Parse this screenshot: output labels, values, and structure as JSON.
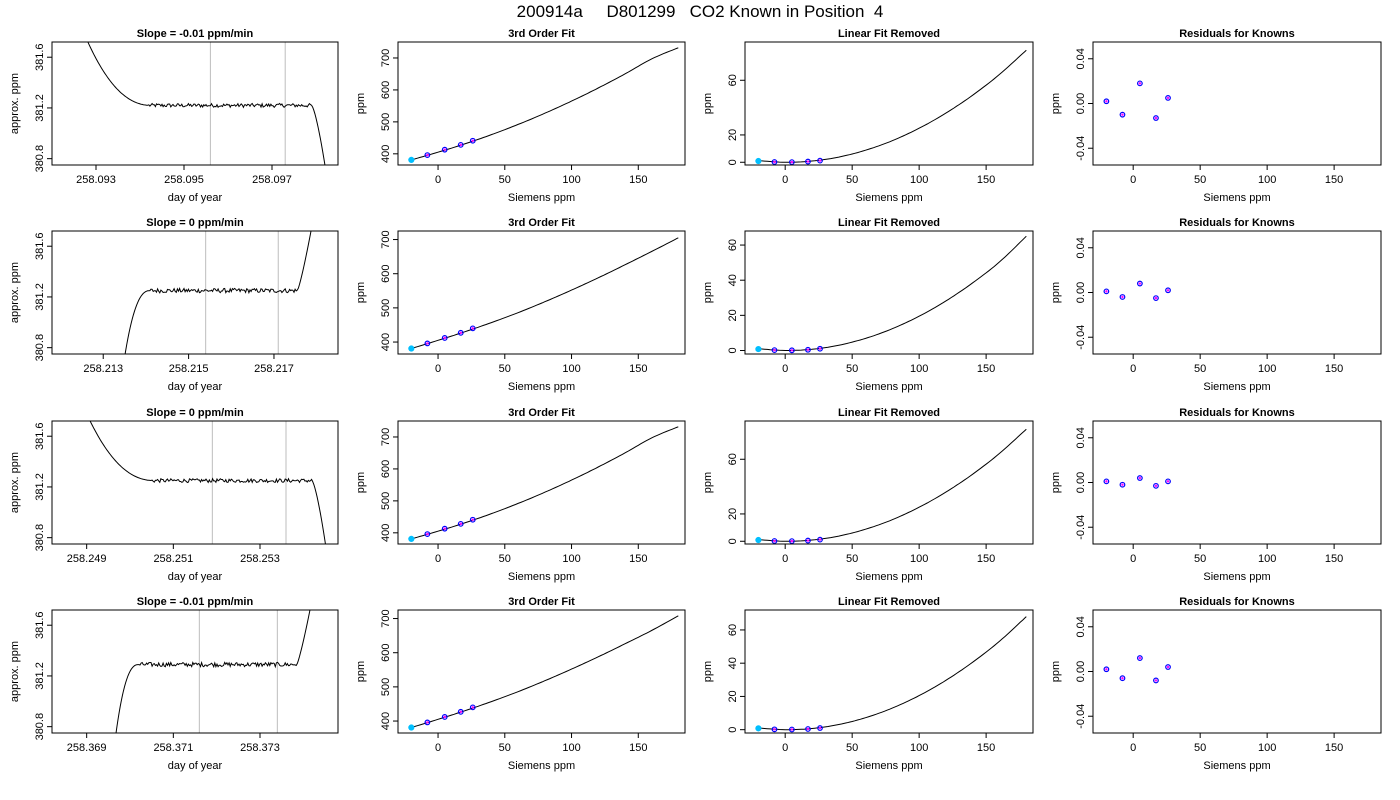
{
  "title": "200914a     D801299   CO2 Known in Position  4",
  "colors": {
    "curve": "#000000",
    "vline": "#bdbdbd",
    "point_outline": "#0000ff",
    "point_fill": "#ff00ff",
    "first_point": "#00bfff"
  },
  "axis_labels": {
    "day_of_year": "day of year",
    "approx_ppm": "approx. ppm",
    "siemens_ppm": "Siemens ppm",
    "ppm": "ppm"
  },
  "panel_titles": {
    "fit": "3rd Order Fit",
    "linear": "Linear Fit Removed",
    "resid": "Residuals for Knowns"
  },
  "y_ticks": {
    "ts": [
      "380.8",
      "381.2",
      "381.6"
    ],
    "resid": [
      "-0.04",
      "0.00",
      "0.04"
    ]
  },
  "x_ticks": {
    "siemens": [
      "0",
      "50",
      "100",
      "150"
    ]
  },
  "chart_data": [
    {
      "type": "line",
      "title": "Slope =  -0.01  ppm/min",
      "xlabel": "day of year",
      "ylabel": "approx. ppm",
      "x_ticks": [
        "258.093",
        "258.095",
        "258.097"
      ],
      "xlim": [
        258.092,
        258.0985
      ],
      "ylim": [
        380.75,
        381.72
      ],
      "marker_lines_x": [
        258.0956,
        258.0973
      ],
      "profile": "high_start",
      "level": 381.22,
      "start_value": 382.5,
      "end_value": 380.2,
      "settle_x": 258.0942,
      "end_x": 258.0981
    },
    {
      "type": "line",
      "title": "3rd Order Fit",
      "xlabel": "Siemens ppm",
      "ylabel": "ppm",
      "x_ticks": [
        "0",
        "50",
        "100",
        "150"
      ],
      "y_ticks": [
        "400",
        "500",
        "600",
        "700"
      ],
      "xlim": [
        -30,
        185
      ],
      "ylim": [
        365,
        750
      ],
      "curve_x": [
        -20,
        0,
        20,
        40,
        60,
        80,
        100,
        120,
        140,
        160,
        180
      ],
      "curve_y": [
        381,
        405,
        431,
        460,
        492,
        527,
        565,
        606,
        650,
        697,
        732
      ],
      "points_x": [
        -20,
        -8,
        5,
        17,
        26
      ],
      "points_y": [
        381,
        396,
        413,
        428,
        441
      ]
    },
    {
      "type": "line",
      "title": "Linear Fit Removed",
      "xlabel": "Siemens ppm",
      "ylabel": "ppm",
      "x_ticks": [
        "0",
        "50",
        "100",
        "150"
      ],
      "y_ticks": [
        "0",
        "20",
        "60"
      ],
      "xlim": [
        -30,
        185
      ],
      "ylim": [
        -2,
        88
      ],
      "curve_x": [
        -20,
        0,
        20,
        40,
        60,
        80,
        100,
        120,
        140,
        160,
        180
      ],
      "curve_y": [
        1.2,
        0.0,
        0.9,
        3.8,
        8.8,
        15.8,
        24.9,
        36.0,
        49.1,
        64.3,
        82
      ],
      "points_x": [
        -20,
        -8,
        5,
        17,
        26
      ],
      "points_y": [
        0.9,
        0.2,
        0.1,
        0.5,
        1.2
      ]
    },
    {
      "type": "scatter",
      "title": "Residuals for Knowns",
      "xlabel": "Siemens ppm",
      "ylabel": "ppm",
      "x_ticks": [
        "0",
        "50",
        "100",
        "150"
      ],
      "y_ticks": [
        "-0.04",
        "0.00",
        "0.04"
      ],
      "xlim": [
        -30,
        185
      ],
      "ylim": [
        -0.055,
        0.055
      ],
      "points_x": [
        -20,
        -8,
        5,
        17,
        26
      ],
      "points_y": [
        0.002,
        -0.01,
        0.018,
        -0.013,
        0.005
      ]
    },
    {
      "type": "line",
      "title": "Slope =  0  ppm/min",
      "xlabel": "day of year",
      "ylabel": "approx. ppm",
      "x_ticks": [
        "258.213",
        "258.215",
        "258.217"
      ],
      "xlim": [
        258.2118,
        258.2185
      ],
      "ylim": [
        380.75,
        381.72
      ],
      "marker_lines_x": [
        258.2154,
        258.2171
      ],
      "profile": "low_start",
      "level": 381.25,
      "start_value": 380.2,
      "end_value": 382.5,
      "settle_x": 258.2141,
      "end_x": 258.2178,
      "begin_x": 258.2133
    },
    {
      "type": "line",
      "title": "3rd Order Fit",
      "xlabel": "Siemens ppm",
      "ylabel": "ppm",
      "x_ticks": [
        "0",
        "50",
        "100",
        "150"
      ],
      "y_ticks": [
        "400",
        "500",
        "600",
        "700"
      ],
      "xlim": [
        -30,
        185
      ],
      "ylim": [
        365,
        725
      ],
      "curve_x": [
        -20,
        0,
        20,
        40,
        60,
        80,
        100,
        120,
        140,
        160,
        180
      ],
      "curve_y": [
        381,
        405,
        430,
        457,
        486,
        518,
        552,
        588,
        626,
        665,
        705
      ],
      "points_x": [
        -20,
        -8,
        5,
        17,
        26
      ],
      "points_y": [
        381,
        396,
        412,
        427,
        440
      ]
    },
    {
      "type": "line",
      "title": "Linear Fit Removed",
      "xlabel": "Siemens ppm",
      "ylabel": "ppm",
      "x_ticks": [
        "0",
        "50",
        "100",
        "150"
      ],
      "y_ticks": [
        "0",
        "20",
        "40",
        "60"
      ],
      "xlim": [
        -30,
        185
      ],
      "ylim": [
        -2,
        68
      ],
      "curve_x": [
        -20,
        0,
        20,
        40,
        60,
        80,
        100,
        120,
        140,
        160,
        180
      ],
      "curve_y": [
        1.0,
        0.0,
        0.7,
        3.0,
        6.9,
        12.4,
        19.5,
        28.2,
        38.5,
        50.4,
        65
      ],
      "points_x": [
        -20,
        -8,
        5,
        17,
        26
      ],
      "points_y": [
        0.8,
        0.2,
        0.1,
        0.4,
        1.0
      ]
    },
    {
      "type": "scatter",
      "title": "Residuals for Knowns",
      "xlabel": "Siemens ppm",
      "ylabel": "ppm",
      "x_ticks": [
        "0",
        "50",
        "100",
        "150"
      ],
      "y_ticks": [
        "-0.04",
        "0.00",
        "0.04"
      ],
      "xlim": [
        -30,
        185
      ],
      "ylim": [
        -0.055,
        0.055
      ],
      "points_x": [
        -20,
        -8,
        5,
        17,
        26
      ],
      "points_y": [
        0.001,
        -0.004,
        0.008,
        -0.005,
        0.002
      ]
    },
    {
      "type": "line",
      "title": "Slope =  0  ppm/min",
      "xlabel": "day of year",
      "ylabel": "approx. ppm",
      "x_ticks": [
        "258.249",
        "258.251",
        "258.253"
      ],
      "xlim": [
        258.2482,
        258.2548
      ],
      "ylim": [
        380.75,
        381.72
      ],
      "marker_lines_x": [
        258.2519,
        258.2536
      ],
      "profile": "high_start",
      "level": 381.25,
      "start_value": 382.5,
      "end_value": 380.2,
      "settle_x": 258.2505,
      "end_x": 258.2544
    },
    {
      "type": "line",
      "title": "3rd Order Fit",
      "xlabel": "Siemens ppm",
      "ylabel": "ppm",
      "x_ticks": [
        "0",
        "50",
        "100",
        "150"
      ],
      "y_ticks": [
        "400",
        "500",
        "600",
        "700"
      ],
      "xlim": [
        -30,
        185
      ],
      "ylim": [
        365,
        750
      ],
      "curve_x": [
        -20,
        0,
        20,
        40,
        60,
        80,
        100,
        120,
        140,
        160,
        180
      ],
      "curve_y": [
        381,
        405,
        431,
        460,
        492,
        527,
        565,
        606,
        650,
        697,
        732
      ],
      "points_x": [
        -20,
        -8,
        5,
        17,
        26
      ],
      "points_y": [
        381,
        396,
        413,
        428,
        441
      ]
    },
    {
      "type": "line",
      "title": "Linear Fit Removed",
      "xlabel": "Siemens ppm",
      "ylabel": "ppm",
      "x_ticks": [
        "0",
        "50",
        "100",
        "150"
      ],
      "y_ticks": [
        "0",
        "20",
        "60"
      ],
      "xlim": [
        -30,
        185
      ],
      "ylim": [
        -2,
        88
      ],
      "curve_x": [
        -20,
        0,
        20,
        40,
        60,
        80,
        100,
        120,
        140,
        160,
        180
      ],
      "curve_y": [
        1.2,
        0.0,
        0.9,
        3.8,
        8.8,
        15.8,
        24.9,
        36.0,
        49.1,
        64.3,
        82
      ],
      "points_x": [
        -20,
        -8,
        5,
        17,
        26
      ],
      "points_y": [
        0.9,
        0.2,
        0.1,
        0.5,
        1.2
      ]
    },
    {
      "type": "scatter",
      "title": "Residuals for Knowns",
      "xlabel": "Siemens ppm",
      "ylabel": "ppm",
      "x_ticks": [
        "0",
        "50",
        "100",
        "150"
      ],
      "y_ticks": [
        "-0.04",
        "0.00",
        "0.04"
      ],
      "xlim": [
        -30,
        185
      ],
      "ylim": [
        -0.055,
        0.055
      ],
      "points_x": [
        -20,
        -8,
        5,
        17,
        26
      ],
      "points_y": [
        0.001,
        -0.002,
        0.004,
        -0.003,
        0.001
      ]
    },
    {
      "type": "line",
      "title": "Slope =  -0.01  ppm/min",
      "xlabel": "day of year",
      "ylabel": "approx. ppm",
      "x_ticks": [
        "258.369",
        "258.371",
        "258.373"
      ],
      "xlim": [
        258.3682,
        258.3748
      ],
      "ylim": [
        380.75,
        381.72
      ],
      "marker_lines_x": [
        258.3716,
        258.3734
      ],
      "profile": "low_start",
      "level": 381.29,
      "start_value": 380.2,
      "end_value": 382.5,
      "settle_x": 258.3702,
      "end_x": 258.3741,
      "begin_x": 258.3695
    },
    {
      "type": "line",
      "title": "3rd Order Fit",
      "xlabel": "Siemens ppm",
      "ylabel": "ppm",
      "x_ticks": [
        "0",
        "50",
        "100",
        "150"
      ],
      "y_ticks": [
        "400",
        "500",
        "600",
        "700"
      ],
      "xlim": [
        -30,
        185
      ],
      "ylim": [
        365,
        725
      ],
      "curve_x": [
        -20,
        0,
        20,
        40,
        60,
        80,
        100,
        120,
        140,
        160,
        180
      ],
      "curve_y": [
        381,
        405,
        430,
        457,
        486,
        518,
        552,
        588,
        626,
        665,
        708
      ],
      "points_x": [
        -20,
        -8,
        5,
        17,
        26
      ],
      "points_y": [
        381,
        396,
        412,
        427,
        440
      ]
    },
    {
      "type": "line",
      "title": "Linear Fit Removed",
      "xlabel": "Siemens ppm",
      "ylabel": "ppm",
      "x_ticks": [
        "0",
        "50",
        "100",
        "150"
      ],
      "y_ticks": [
        "0",
        "20",
        "40",
        "60"
      ],
      "xlim": [
        -30,
        185
      ],
      "ylim": [
        -2,
        72
      ],
      "curve_x": [
        -20,
        0,
        20,
        40,
        60,
        80,
        100,
        120,
        140,
        160,
        180
      ],
      "curve_y": [
        1.0,
        0.0,
        0.7,
        3.1,
        7.2,
        13.0,
        20.5,
        29.7,
        40.6,
        53.2,
        68
      ],
      "points_x": [
        -20,
        -8,
        5,
        17,
        26
      ],
      "points_y": [
        0.8,
        0.2,
        0.1,
        0.4,
        1.0
      ]
    },
    {
      "type": "scatter",
      "title": "Residuals for Knowns",
      "xlabel": "Siemens ppm",
      "ylabel": "ppm",
      "x_ticks": [
        "0",
        "50",
        "100",
        "150"
      ],
      "y_ticks": [
        "-0.04",
        "0.00",
        "0.04"
      ],
      "xlim": [
        -30,
        185
      ],
      "ylim": [
        -0.055,
        0.055
      ],
      "points_x": [
        -20,
        -8,
        5,
        17,
        26
      ],
      "points_y": [
        0.002,
        -0.006,
        0.012,
        -0.008,
        0.004
      ]
    }
  ]
}
